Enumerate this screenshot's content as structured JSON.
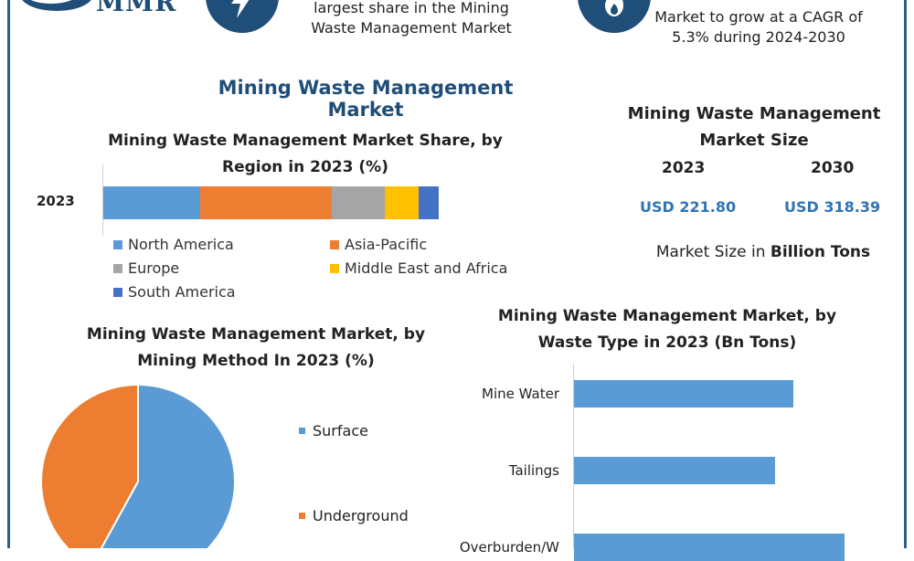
{
  "logo": {
    "text": "MMR"
  },
  "top": {
    "middle_text_line1": "largest share in the Mining",
    "middle_text_line2": "Waste Management Market",
    "right_text_line1": "Market to grow at a CAGR of",
    "right_text_line2": "5.3% during 2024-2030"
  },
  "colors": {
    "brand": "#1f4e79",
    "accent_value": "#2e75b6",
    "north_america": "#5b9bd5",
    "asia_pacific": "#ed7d31",
    "europe": "#a5a5a5",
    "middle_east_africa": "#ffc000",
    "south_america": "#4472c4"
  },
  "main_title": "Mining Waste Management Market",
  "market_size": {
    "title_line1": "Mining Waste Management",
    "title_line2": "Market Size",
    "year_a": "2023",
    "year_b": "2030",
    "value_a": "USD 221.80",
    "value_b": "USD 318.39",
    "unit_prefix": "Market Size in ",
    "unit_bold": "Billion Tons"
  },
  "chart_data": [
    {
      "type": "bar",
      "orientation": "horizontal-stacked",
      "title": "Mining Waste Management Market Share, by Region in 2023 (%)",
      "title_line1": "Mining Waste Management Market Share, by",
      "title_line2": "Region in 2023 (%)",
      "categories": [
        "2023"
      ],
      "series": [
        {
          "name": "North America",
          "values": [
            29
          ]
        },
        {
          "name": "Asia-Pacific",
          "values": [
            39
          ]
        },
        {
          "name": "Europe",
          "values": [
            16
          ]
        },
        {
          "name": "Middle East and Africa",
          "values": [
            10
          ]
        },
        {
          "name": "South America",
          "values": [
            6
          ]
        }
      ],
      "legend": "bottom",
      "grid": false
    },
    {
      "type": "pie",
      "title": "Mining Waste Management Market, by Mining Method In 2023 (%)",
      "title_line1": "Mining Waste Management Market, by",
      "title_line2": "Mining Method In 2023 (%)",
      "labels": [
        "Surface",
        "Underground"
      ],
      "values": [
        58,
        42
      ],
      "legend": "right"
    },
    {
      "type": "bar",
      "orientation": "horizontal",
      "title": "Mining Waste Management Market, by Waste Type in 2023 (Bn Tons)",
      "title_line1": "Mining Waste Management Market, by",
      "title_line2": "Waste Type in 2023 (Bn Tons)",
      "categories": [
        "Mine Water",
        "Tailings",
        "Overburden/W"
      ],
      "values": [
        60,
        55,
        74
      ],
      "xlim": [
        0,
        80
      ],
      "grid": false
    }
  ]
}
